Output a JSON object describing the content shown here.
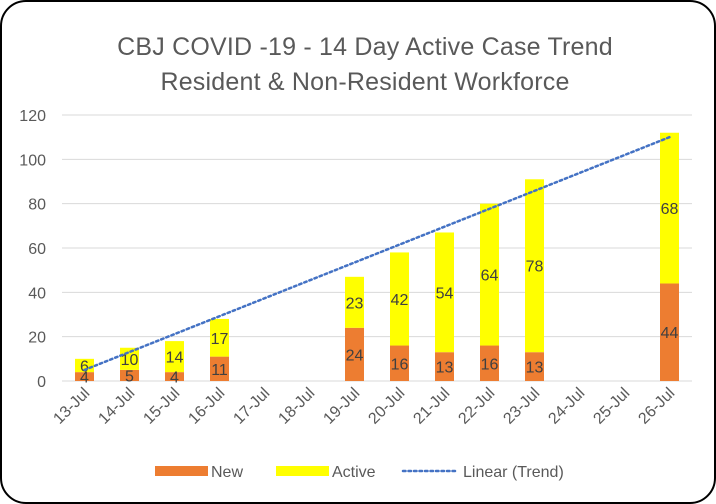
{
  "chart_data": {
    "type": "bar",
    "stacked": true,
    "title": "CBJ COVID -19 - 14 Day Active Case Trend",
    "subtitle": "Resident & Non-Resident Workforce",
    "categories": [
      "13-Jul",
      "14-Jul",
      "15-Jul",
      "16-Jul",
      "17-Jul",
      "18-Jul",
      "19-Jul",
      "20-Jul",
      "21-Jul",
      "22-Jul",
      "23-Jul",
      "24-Jul",
      "25-Jul",
      "26-Jul"
    ],
    "series": [
      {
        "name": "New",
        "color": "#ED7D31",
        "values": [
          4,
          5,
          4,
          11,
          null,
          null,
          24,
          16,
          13,
          16,
          13,
          null,
          null,
          44
        ]
      },
      {
        "name": "Active",
        "color": "#FFFF00",
        "values": [
          6,
          10,
          14,
          17,
          null,
          null,
          23,
          42,
          54,
          64,
          78,
          null,
          null,
          68
        ]
      }
    ],
    "trendline": {
      "name": "Linear (Trend)",
      "color": "#4472C4",
      "start": 5,
      "end": 110
    },
    "ylim": [
      0,
      120
    ],
    "yticks": [
      0,
      20,
      40,
      60,
      80,
      100,
      120
    ],
    "xlabel": "",
    "ylabel": "",
    "grid": true,
    "legend_position": "bottom"
  }
}
